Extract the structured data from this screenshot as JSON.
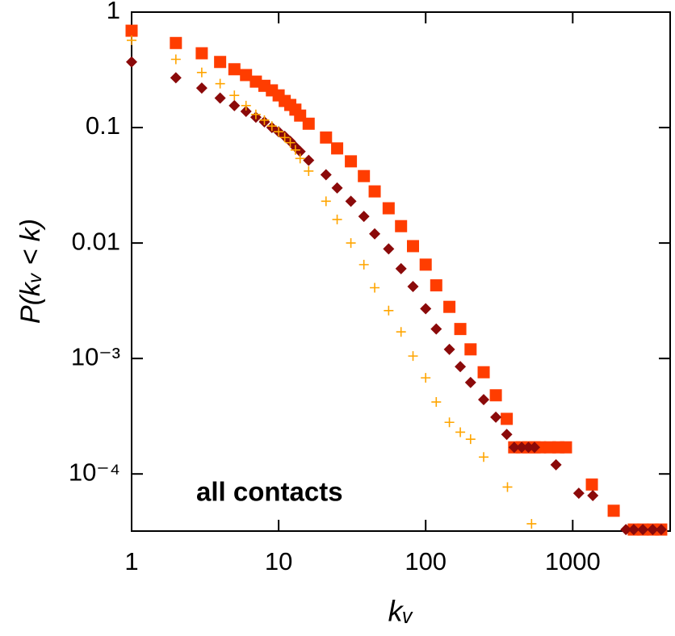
{
  "chart_data": {
    "type": "scatter",
    "x_label": "kᵥ",
    "y_label": "P(kᵥ < k)",
    "annotation": "all contacts",
    "xscale": "log",
    "yscale": "log",
    "xlim": [
      1,
      4600
    ],
    "ylim": [
      3.2e-05,
      1
    ],
    "xticks": [
      1,
      10,
      100,
      1000
    ],
    "yticks": [
      1,
      0.1,
      0.01,
      {
        "value": 0.001,
        "label": "10⁻³"
      },
      {
        "value": 0.0001,
        "label": "10⁻⁴"
      }
    ],
    "series": [
      {
        "marker": "square",
        "color": "#ff3d00",
        "x": [
          1,
          2,
          3,
          4,
          5,
          6,
          7,
          8,
          9,
          10,
          11,
          12,
          13,
          14,
          16,
          21,
          25,
          31,
          38,
          45,
          56,
          68,
          82,
          100,
          118,
          145,
          172,
          202,
          248,
          300,
          356,
          400,
          450,
          500,
          550,
          600,
          700,
          800,
          900,
          1350,
          1900,
          2600,
          3000,
          3500,
          4000
        ],
        "values": [
          0.69,
          0.54,
          0.44,
          0.37,
          0.32,
          0.285,
          0.25,
          0.23,
          0.21,
          0.19,
          0.17,
          0.157,
          0.143,
          0.127,
          0.108,
          0.082,
          0.066,
          0.051,
          0.038,
          0.028,
          0.02,
          0.014,
          0.0094,
          0.0065,
          0.0043,
          0.0028,
          0.0018,
          0.0012,
          0.00076,
          0.00048,
          0.0003,
          0.00017,
          0.00017,
          0.00017,
          0.00017,
          0.00017,
          0.00017,
          0.00017,
          0.00017,
          8.1e-05,
          4.8e-05,
          3.3e-05,
          3.3e-05,
          3.3e-05,
          3.3e-05
        ]
      },
      {
        "marker": "diamond",
        "color": "#8b0a0a",
        "x": [
          1,
          2,
          3,
          4,
          5,
          6,
          7,
          8,
          9,
          10,
          11,
          12,
          13,
          14,
          16,
          21,
          25,
          31,
          38,
          45,
          56,
          68,
          82,
          100,
          118,
          145,
          172,
          202,
          248,
          300,
          356,
          400,
          450,
          500,
          550,
          770,
          1100,
          1370,
          2300,
          2600,
          3000,
          3500,
          4000
        ],
        "values": [
          0.37,
          0.27,
          0.22,
          0.18,
          0.155,
          0.138,
          0.123,
          0.112,
          0.1,
          0.092,
          0.084,
          0.076,
          0.068,
          0.062,
          0.052,
          0.039,
          0.03,
          0.023,
          0.017,
          0.012,
          0.0089,
          0.006,
          0.0042,
          0.0027,
          0.0018,
          0.0012,
          0.00085,
          0.00062,
          0.00044,
          0.00031,
          0.00022,
          0.00017,
          0.00017,
          0.00017,
          0.00017,
          0.00012,
          6.8e-05,
          6.5e-05,
          3.3e-05,
          3.3e-05,
          3.3e-05,
          3.3e-05,
          3.3e-05
        ]
      },
      {
        "marker": "plus",
        "color": "#ffa500",
        "x": [
          1,
          2,
          3,
          4,
          5,
          6,
          7,
          8,
          9,
          10,
          11,
          12,
          13,
          14,
          16,
          21,
          25,
          31,
          38,
          45,
          56,
          68,
          82,
          100,
          118,
          145,
          172,
          202,
          248,
          360,
          525
        ],
        "values": [
          0.57,
          0.39,
          0.3,
          0.24,
          0.19,
          0.155,
          0.13,
          0.116,
          0.103,
          0.092,
          0.082,
          0.074,
          0.064,
          0.054,
          0.042,
          0.023,
          0.016,
          0.01,
          0.0065,
          0.0041,
          0.0026,
          0.0017,
          0.00105,
          0.00068,
          0.00042,
          0.00028,
          0.00023,
          0.0002,
          0.00014,
          7.7e-05,
          3.7e-05
        ]
      }
    ]
  }
}
